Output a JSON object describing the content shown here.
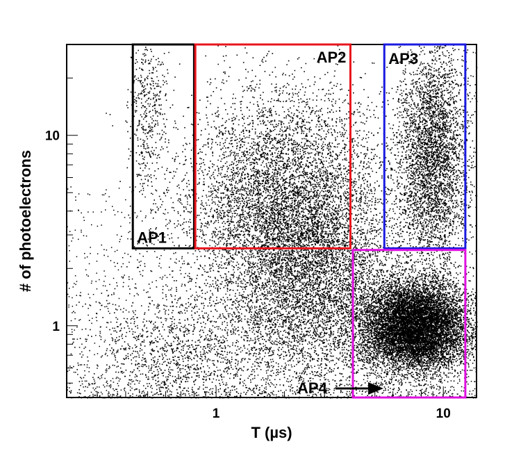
{
  "chart_data": {
    "type": "scatter",
    "title": "",
    "xlabel": "T (µs)",
    "ylabel": "# of photoelectrons",
    "x_scale": "log",
    "y_scale": "log",
    "xlim": [
      0.22,
      14
    ],
    "ylim": [
      0.42,
      30
    ],
    "x_ticks": [
      {
        "value": 1,
        "label": "1"
      },
      {
        "value": 10,
        "label": "10"
      }
    ],
    "y_ticks": [
      {
        "value": 1,
        "label": "1"
      },
      {
        "value": 10,
        "label": "10"
      }
    ],
    "grid": false,
    "legend": "none",
    "point_color": "#000000",
    "clusters": [
      {
        "name": "",
        "x_center": 0.5,
        "y_center": 15,
        "x_spread": 0.04,
        "y_spread": 0.3,
        "relative_density": 0.02
      },
      {
        "name": "",
        "x_center": 0.75,
        "y_center": 0.7,
        "x_spread": 0.25,
        "y_spread": 0.2,
        "relative_density": 0.06
      },
      {
        "name": "",
        "x_center": 2.0,
        "y_center": 4.5,
        "x_spread": 0.22,
        "y_spread": 0.3,
        "relative_density": 0.25
      },
      {
        "name": "",
        "x_center": 2.8,
        "y_center": 1.5,
        "x_spread": 0.18,
        "y_spread": 0.25,
        "relative_density": 0.14
      },
      {
        "name": "",
        "x_center": 9.0,
        "y_center": 8.0,
        "x_spread": 0.08,
        "y_spread": 0.3,
        "relative_density": 0.15
      },
      {
        "name": "",
        "x_center": 7.5,
        "y_center": 1.0,
        "x_spread": 0.12,
        "y_spread": 0.12,
        "relative_density": 0.38
      }
    ],
    "regions": [
      {
        "label": "AP1",
        "x_min": 0.43,
        "x_max": 0.8,
        "y_min": 2.55,
        "y_max": 30,
        "color": "#000000",
        "label_pos": "bottom-left"
      },
      {
        "label": "AP2",
        "x_min": 0.81,
        "x_max": 3.9,
        "y_min": 2.55,
        "y_max": 30,
        "color": "#e8141c",
        "label_pos": "top-right"
      },
      {
        "label": "AP3",
        "x_min": 5.5,
        "x_max": 12.5,
        "y_min": 2.55,
        "y_max": 30,
        "color": "#1a1adf",
        "label_pos": "top-left"
      },
      {
        "label": "AP4",
        "x_min": 4.0,
        "x_max": 12.5,
        "y_min": 0.42,
        "y_max": 2.5,
        "color": "#e010e0",
        "label_pos": "arrow-left"
      }
    ]
  }
}
